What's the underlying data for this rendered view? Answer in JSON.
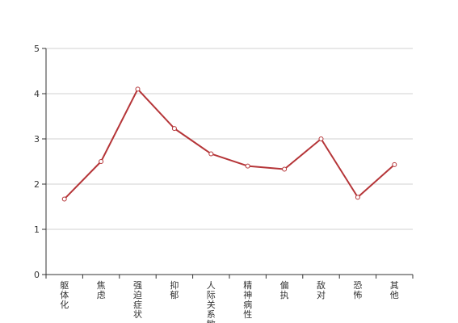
{
  "chart_data": {
    "type": "line",
    "categories": [
      "躯体化",
      "焦虑",
      "强迫症状",
      "抑郁",
      "人际关系敏感",
      "精神病性",
      "偏执",
      "敌对",
      "恐怖",
      "其他"
    ],
    "series": [
      {
        "values": [
          1.67,
          2.5,
          4.1,
          3.23,
          2.67,
          2.4,
          2.33,
          3.0,
          1.71,
          2.43
        ]
      }
    ],
    "title": "",
    "xlabel": "",
    "ylabel": "",
    "ylim": [
      0,
      5
    ],
    "yticks": [
      "0",
      "1",
      "2",
      "3",
      "4",
      "5"
    ],
    "grid": true,
    "legend": "none",
    "colors": {
      "line": "#b53538",
      "marker_fill": "#ffffff",
      "grid": "#d0d0d0",
      "axis": "#333333"
    }
  }
}
